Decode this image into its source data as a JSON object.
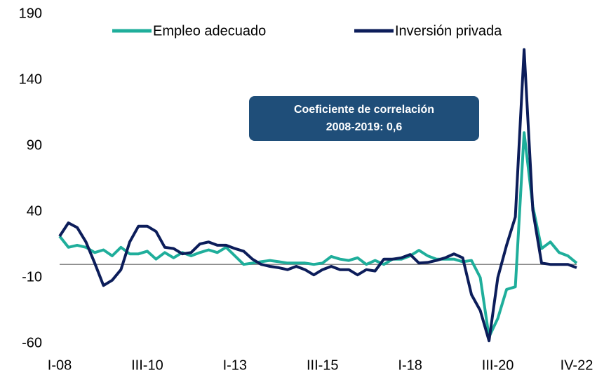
{
  "chart_data": {
    "type": "line",
    "categories": [
      "I-08",
      null,
      null,
      null,
      null,
      null,
      null,
      null,
      null,
      null,
      "III-10",
      null,
      null,
      null,
      null,
      null,
      null,
      null,
      null,
      null,
      "I-13",
      null,
      null,
      null,
      null,
      null,
      null,
      null,
      null,
      null,
      "III-15",
      null,
      null,
      null,
      null,
      null,
      null,
      null,
      null,
      null,
      "I-18",
      null,
      null,
      null,
      null,
      null,
      null,
      null,
      null,
      null,
      "III-20",
      null,
      null,
      null,
      null,
      null,
      null,
      null,
      null,
      "IV-22"
    ],
    "series": [
      {
        "name": "Empleo adecuado",
        "color": "#1fae9b",
        "values": [
          21.4,
          13,
          14.5,
          13,
          9,
          11,
          6.5,
          13,
          8,
          8,
          10,
          4,
          9,
          5,
          9,
          6.5,
          9,
          11,
          9,
          13,
          6.5,
          0,
          1,
          2,
          3,
          2,
          1,
          1,
          1,
          0,
          1,
          6,
          4,
          3,
          5,
          0,
          3,
          0,
          4,
          4,
          6.5,
          10.7,
          6.5,
          4,
          4,
          4,
          2,
          3,
          -10,
          -55,
          -41,
          -19,
          -17,
          100,
          44,
          12,
          17,
          9,
          6.5,
          1
        ]
      },
      {
        "name": "Inversión privada",
        "color": "#0c1d5a",
        "values": [
          21.4,
          31.5,
          28,
          17,
          1,
          -16,
          -12,
          -4,
          17,
          29,
          29,
          25,
          13,
          12,
          8,
          9,
          15.5,
          17,
          14.5,
          14.5,
          12,
          10,
          4,
          0,
          -1.5,
          -2.5,
          -4,
          -1.5,
          -4,
          -8,
          -4,
          -1.5,
          -4,
          -4,
          -8,
          -4,
          -5,
          4,
          4,
          5,
          7.5,
          1,
          1.5,
          3,
          5,
          8,
          5,
          -23,
          -35,
          -58,
          -10,
          14.5,
          36,
          163,
          41,
          1,
          0,
          0,
          0,
          -2.5
        ]
      }
    ],
    "ylim": [
      -60,
      190
    ],
    "yticks": [
      -60,
      -10,
      40,
      90,
      140,
      190
    ],
    "annotation": [
      "Coeficiente de correlación",
      "2008-2019: 0,6"
    ]
  }
}
